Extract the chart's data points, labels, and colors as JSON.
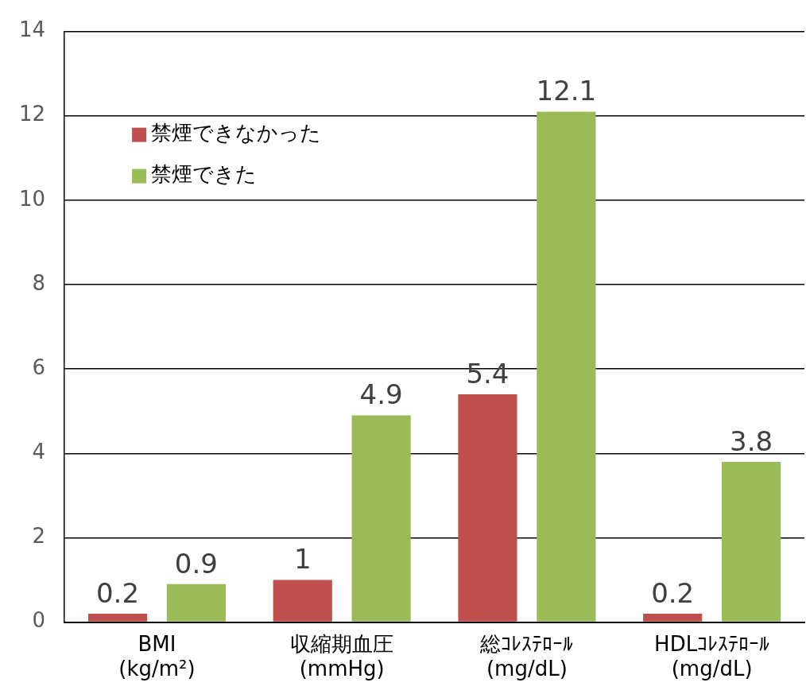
{
  "chart_data": {
    "type": "bar",
    "categories": [
      "BMI\n(kg/m²)",
      "収縮期血圧\n(mmHg)",
      "総ｺﾚｽﾃﾛｰﾙ\n(mg/dL)",
      "HDLｺﾚｽﾃﾛｰﾙ\n(mg/dL)"
    ],
    "series": [
      {
        "name": "禁煙できなかった",
        "color": "#c0504d",
        "values": [
          0.2,
          1,
          5.4,
          0.2
        ]
      },
      {
        "name": "禁煙できた",
        "color": "#9bbb59",
        "values": [
          0.9,
          4.9,
          12.1,
          3.8
        ]
      }
    ],
    "ylim": [
      0,
      14
    ],
    "yticks": [
      0,
      2,
      4,
      6,
      8,
      10,
      12,
      14
    ],
    "grid": "y",
    "legend": "top left",
    "data_labels": true
  }
}
